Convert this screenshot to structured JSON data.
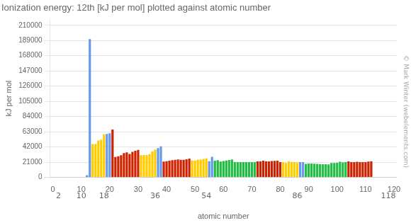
{
  "chart_data": {
    "type": "bar",
    "title": "Ionization energy: 12th [kJ per mol] plotted against atomic number",
    "x_label": "atomic number",
    "y_label": "kJ per mol",
    "x": [
      12,
      13,
      14,
      15,
      16,
      17,
      18,
      19,
      20,
      21,
      22,
      23,
      24,
      25,
      26,
      27,
      28,
      29,
      30,
      31,
      32,
      33,
      34,
      35,
      36,
      37,
      38,
      39,
      40,
      41,
      42,
      43,
      44,
      45,
      46,
      47,
      48,
      49,
      50,
      51,
      52,
      53,
      54,
      55,
      56,
      57,
      58,
      59,
      60,
      61,
      62,
      63,
      64,
      65,
      66,
      67,
      68,
      69,
      70,
      71,
      72,
      73,
      74,
      75,
      76,
      77,
      78,
      79,
      80,
      81,
      82,
      83,
      84,
      85,
      86,
      87,
      88,
      89,
      90,
      91,
      92,
      93,
      94,
      95,
      96,
      97,
      98,
      99,
      100,
      101,
      102,
      103,
      104,
      105,
      106,
      107,
      108,
      109,
      110,
      111,
      112
    ],
    "values": [
      3051.8,
      190920,
      45962,
      46052,
      50962,
      52226,
      59470,
      60040,
      60910,
      66200,
      28100,
      29300,
      30600,
      33668,
      34600,
      32400,
      35400,
      36700,
      38100,
      30900,
      31000,
      30820,
      32230,
      36050,
      38500,
      40340,
      42965,
      21800,
      22400,
      23000,
      23700,
      24400,
      24800,
      24400,
      24390,
      24980,
      26040,
      23200,
      23400,
      24600,
      24500,
      25600,
      26370,
      22400,
      28400,
      23100,
      23900,
      21900,
      22600,
      23400,
      24100,
      24900,
      21000,
      21000,
      21000,
      21000,
      21000,
      21000,
      21000,
      21000,
      22100,
      22000,
      23100,
      22100,
      22200,
      22700,
      22800,
      23100,
      21000,
      21080,
      20000,
      22400,
      21000,
      21000,
      20400,
      21000,
      21000,
      18600,
      19100,
      19200,
      18800,
      18700,
      18500,
      18300,
      18100,
      18000,
      19900,
      20000,
      20100,
      21600,
      20700,
      21000,
      22000,
      21000,
      21000,
      21500,
      21200,
      21000,
      21000,
      21800,
      22000
    ],
    "colors": [
      "#6699ee",
      "#6699ee",
      "#ffcc00",
      "#ffcc00",
      "#ffcc00",
      "#ffcc00",
      "#ffcc00",
      "#6699ee",
      "#6699ee",
      "#cc2200",
      "#cc2200",
      "#cc2200",
      "#cc2200",
      "#cc2200",
      "#cc2200",
      "#cc2200",
      "#cc2200",
      "#cc2200",
      "#cc2200",
      "#ffcc00",
      "#ffcc00",
      "#ffcc00",
      "#ffcc00",
      "#ffcc00",
      "#ffcc00",
      "#6699ee",
      "#6699ee",
      "#cc2200",
      "#cc2200",
      "#cc2200",
      "#cc2200",
      "#cc2200",
      "#cc2200",
      "#cc2200",
      "#cc2200",
      "#cc2200",
      "#cc2200",
      "#ffcc00",
      "#ffcc00",
      "#ffcc00",
      "#ffcc00",
      "#ffcc00",
      "#ffcc00",
      "#6699ee",
      "#6699ee",
      "#22bb44",
      "#22bb44",
      "#22bb44",
      "#22bb44",
      "#22bb44",
      "#22bb44",
      "#22bb44",
      "#22bb44",
      "#22bb44",
      "#22bb44",
      "#22bb44",
      "#22bb44",
      "#22bb44",
      "#22bb44",
      "#22bb44",
      "#cc2200",
      "#cc2200",
      "#cc2200",
      "#cc2200",
      "#cc2200",
      "#cc2200",
      "#cc2200",
      "#cc2200",
      "#cc2200",
      "#ffcc00",
      "#ffcc00",
      "#ffcc00",
      "#ffcc00",
      "#ffcc00",
      "#ffcc00",
      "#6699ee",
      "#6699ee",
      "#22bb44",
      "#22bb44",
      "#22bb44",
      "#22bb44",
      "#22bb44",
      "#22bb44",
      "#22bb44",
      "#22bb44",
      "#22bb44",
      "#22bb44",
      "#22bb44",
      "#22bb44",
      "#22bb44",
      "#22bb44",
      "#22bb44",
      "#cc2200",
      "#cc2200",
      "#cc2200",
      "#cc2200",
      "#cc2200",
      "#cc2200",
      "#cc2200",
      "#cc2200",
      "#cc2200"
    ],
    "xlim": [
      -1,
      121
    ],
    "xticks": [
      0,
      10,
      20,
      30,
      40,
      50,
      60,
      70,
      80,
      90,
      100,
      110,
      120
    ],
    "ylim": [
      0,
      218000
    ],
    "yticks": [
      0,
      21000,
      42000,
      63000,
      84000,
      105000,
      126000,
      147000,
      168000,
      189000,
      210000
    ],
    "grid": "y",
    "annotations": [
      {
        "text": "2",
        "x": 2
      },
      {
        "text": "10",
        "x": 10
      },
      {
        "text": "18",
        "x": 18
      },
      {
        "text": "36",
        "x": 36
      },
      {
        "text": "54",
        "x": 54
      },
      {
        "text": "86",
        "x": 86
      },
      {
        "text": "118",
        "x": 118
      },
      {
        "text": "© Mark Winter (webelements.com)"
      }
    ]
  }
}
